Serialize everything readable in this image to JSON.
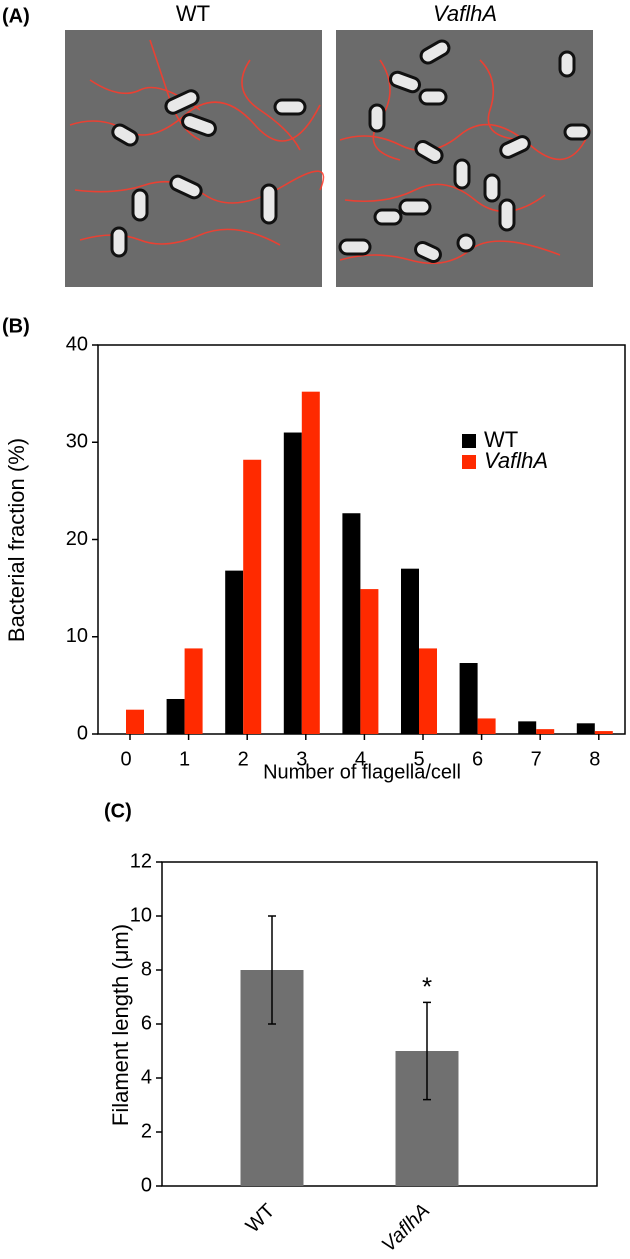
{
  "panel_a": {
    "label": "(A)",
    "images": [
      {
        "title": "WT"
      },
      {
        "title": "VaflhA"
      }
    ]
  },
  "chart_data": [
    {
      "type": "bar",
      "label": "(B)",
      "x_label": "Number of flagella/cell",
      "y_label": "Bacterial fraction (%)",
      "categories": [
        "0",
        "1",
        "2",
        "3",
        "4",
        "5",
        "6",
        "7",
        "8"
      ],
      "series": [
        {
          "name": "WT",
          "color": "#000000",
          "values": [
            0,
            3.6,
            16.8,
            31,
            22.7,
            17,
            7.3,
            1.3,
            1.1
          ]
        },
        {
          "name": "VaflhA",
          "color": "#ff2a00",
          "values": [
            2.5,
            8.8,
            28.2,
            35.2,
            14.9,
            8.8,
            1.6,
            0.5,
            0.3
          ]
        }
      ],
      "ylim": [
        0,
        40
      ],
      "yticks": [
        0,
        10,
        20,
        30,
        40
      ],
      "legend": "upper right"
    },
    {
      "type": "bar",
      "label": "(C)",
      "y_label": "Filament length (μm)",
      "categories": [
        "WT",
        "VaflhA"
      ],
      "values": [
        8,
        5
      ],
      "errors": [
        2,
        1.8
      ],
      "color": "#707070",
      "annotations": [
        "*"
      ],
      "ylim": [
        0,
        12
      ],
      "yticks": [
        0,
        2,
        4,
        6,
        8,
        10,
        12
      ]
    }
  ]
}
